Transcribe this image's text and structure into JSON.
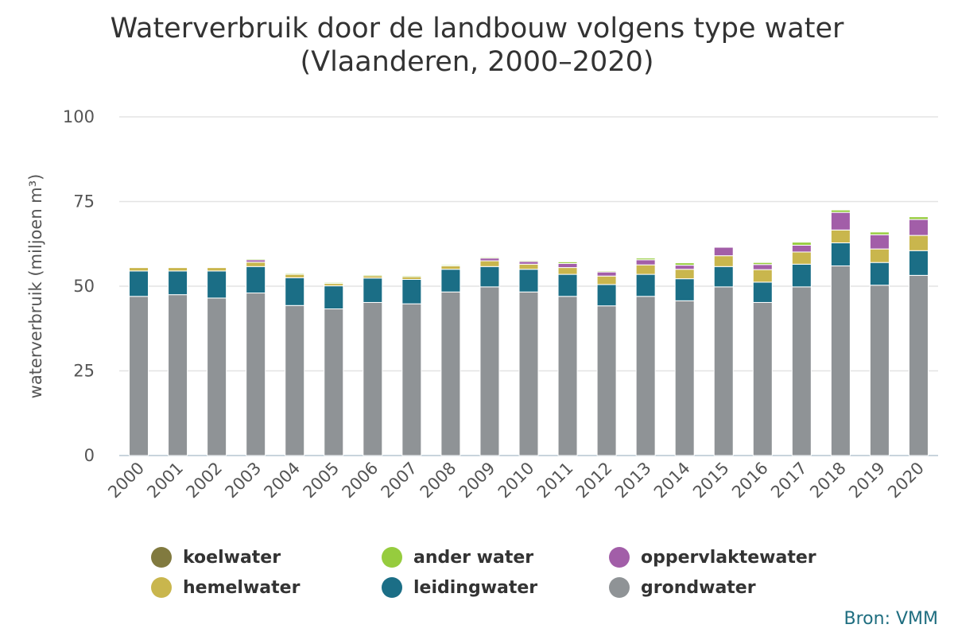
{
  "chart_data": {
    "type": "bar",
    "stacked": true,
    "title_line1": "Waterverbruik door de landbouw volgens type water",
    "title_line2": "(Vlaanderen, 2000–2020)",
    "ylabel": "waterverbruik (miljoen m³)",
    "ylim": [
      0,
      100
    ],
    "yticks": [
      0,
      25,
      50,
      75,
      100
    ],
    "grid": true,
    "legend_position": "bottom",
    "categories": [
      "2000",
      "2001",
      "2002",
      "2003",
      "2004",
      "2005",
      "2006",
      "2007",
      "2008",
      "2009",
      "2010",
      "2011",
      "2012",
      "2013",
      "2014",
      "2015",
      "2016",
      "2017",
      "2018",
      "2019",
      "2020"
    ],
    "series": [
      {
        "name": "grondwater",
        "color": "#8f9396",
        "values": [
          47.0,
          47.5,
          46.5,
          48.0,
          44.3,
          43.3,
          45.2,
          44.8,
          48.3,
          49.8,
          48.3,
          47.0,
          44.2,
          47.0,
          45.7,
          49.8,
          45.2,
          49.8,
          56.0,
          50.3,
          53.2
        ]
      },
      {
        "name": "leidingwater",
        "color": "#1b6e86",
        "values": [
          7.5,
          7.0,
          8.0,
          7.8,
          8.2,
          6.8,
          7.2,
          7.2,
          6.7,
          6.0,
          6.7,
          6.5,
          6.3,
          6.5,
          6.5,
          6.0,
          6.0,
          6.7,
          6.8,
          6.7,
          7.3
        ]
      },
      {
        "name": "hemelwater",
        "color": "#c9b64d",
        "values": [
          1.0,
          1.0,
          1.0,
          1.3,
          1.0,
          0.7,
          0.7,
          0.8,
          1.0,
          1.7,
          1.5,
          2.0,
          2.5,
          2.8,
          2.8,
          3.2,
          3.7,
          3.6,
          3.8,
          4.0,
          4.5
        ]
      },
      {
        "name": "oppervlaktewater",
        "color": "#a25ea8",
        "values": [
          0,
          0,
          0,
          0.7,
          0,
          0,
          0,
          0,
          0,
          0.8,
          0.8,
          1.2,
          1.2,
          1.5,
          1.2,
          2.5,
          1.5,
          2.0,
          5.2,
          4.2,
          4.7
        ]
      },
      {
        "name": "ander water",
        "color": "#96cc3e",
        "values": [
          0.2,
          0.2,
          0.2,
          0.3,
          0.3,
          0.3,
          0.3,
          0.3,
          0.3,
          0.3,
          0.3,
          0.5,
          0.3,
          0.5,
          0.7,
          0.2,
          0.6,
          0.9,
          0.7,
          0.8,
          0.8
        ]
      },
      {
        "name": "koelwater",
        "color": "#817a3f",
        "values": [
          0,
          0,
          0,
          0,
          0,
          0,
          0,
          0,
          0,
          0,
          0,
          0,
          0,
          0,
          0,
          0,
          0,
          0,
          0,
          0,
          0
        ]
      }
    ],
    "legend_order": [
      "koelwater",
      "ander water",
      "oppervlaktewater",
      "hemelwater",
      "leidingwater",
      "grondwater"
    ]
  },
  "source": "Bron: VMM"
}
